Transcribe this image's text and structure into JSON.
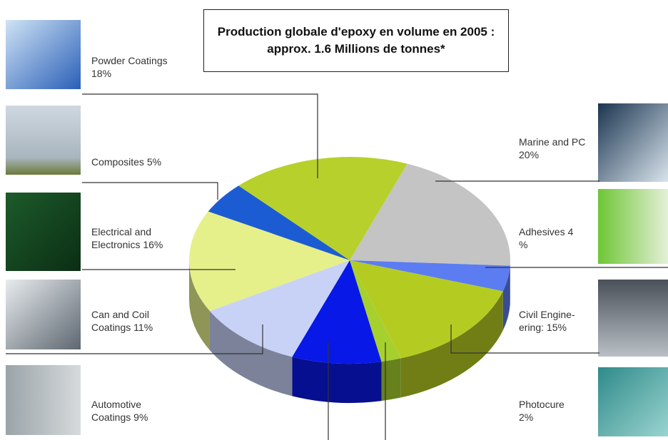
{
  "chart_data": {
    "type": "pie",
    "title": "Production globale d'epoxy en volume en 2005 : approx. 1.6 Millions de tonnes*",
    "categories": [
      "Marine and PC",
      "Adhesives",
      "Civil Engine-ering:",
      "Photocure",
      "Automotive Coatings",
      "Can and Coil Coatings",
      "Electrical and Electronics",
      "Composites",
      "Powder Coatings"
    ],
    "values": [
      20,
      4,
      15,
      2,
      9,
      11,
      16,
      5,
      18
    ],
    "value_labels": [
      "20%",
      "4 %",
      "15%",
      "2%",
      "9%",
      "11%",
      "16%",
      "5%",
      "18%"
    ],
    "colors": [
      "#c4c4c4",
      "#5c7cf2",
      "#b4cc22",
      "#a6d02e",
      "#0818e6",
      "#c8d2f6",
      "#e6f08a",
      "#1c5cd2",
      "#b8d02c"
    ]
  }
}
